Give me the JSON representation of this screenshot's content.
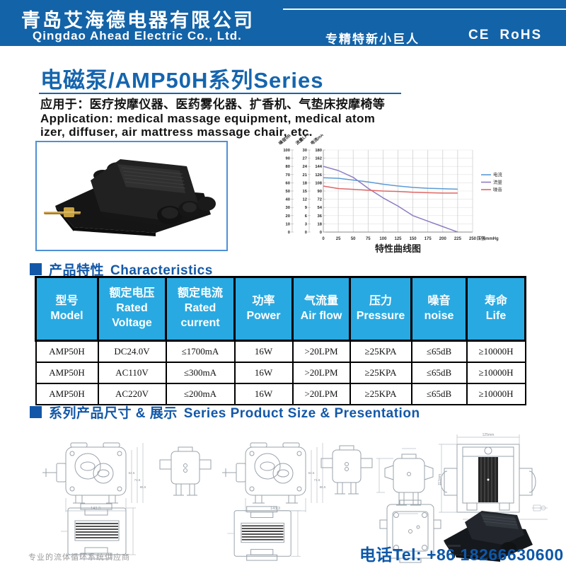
{
  "header": {
    "company_cn": "青岛艾海德电器有限公司",
    "company_en": "Qingdao Ahead Electric Co., Ltd.",
    "slogan": "专精特新小巨人",
    "cert_ce": "CE",
    "cert_rohs": "RoHS"
  },
  "title": {
    "main": "电磁泵/AMP50H系列Series",
    "application_cn": "应用于：医疗按摩仪器、医药雾化器、扩香机、气垫床按摩椅等",
    "application_en1": "Application: medical massage equipment, medical atom",
    "application_en2": "izer, diffuser, air mattress massage chair, etc."
  },
  "chart_data": {
    "type": "line",
    "title": "特性曲线图",
    "xlabel": "压强mmHg",
    "x_ticks": [
      0,
      25,
      50,
      75,
      100,
      125,
      150,
      175,
      200,
      225,
      250
    ],
    "x": [
      0,
      25,
      50,
      75,
      100,
      125,
      150,
      175,
      200,
      225
    ],
    "axes": [
      {
        "label": "噪音dB",
        "max": 100,
        "step": 10
      },
      {
        "label": "流量LPM",
        "max": 30,
        "step": 3
      },
      {
        "label": "电流mA",
        "max": 180,
        "step": 18
      }
    ],
    "series": [
      {
        "name": "电流",
        "axis": "电流mA",
        "color": "#5b9bd5",
        "values": [
          119,
          118,
          114,
          110,
          105,
          101,
          98,
          96,
          95,
          94
        ]
      },
      {
        "name": "流量",
        "axis": "流量LPM",
        "color": "#8e7cc3",
        "values": [
          24,
          22.5,
          20,
          16,
          12.5,
          9.5,
          6,
          4,
          2,
          0
        ]
      },
      {
        "name": "噪音",
        "axis": "噪音dB",
        "color": "#e06666",
        "values": [
          56,
          53,
          52,
          51,
          50,
          49.5,
          48.5,
          48,
          47.5,
          47.5
        ]
      }
    ],
    "legend_position": "right",
    "grid": true
  },
  "characteristics": {
    "heading_cn": "产品特性",
    "heading_en": "Characteristics",
    "columns": [
      {
        "cn": "型号",
        "en": "Model"
      },
      {
        "cn": "额定电压",
        "en": "Rated Voltage"
      },
      {
        "cn": "额定电流",
        "en": "Rated current"
      },
      {
        "cn": "功率",
        "en": "Power"
      },
      {
        "cn": "气流量",
        "en": "Air flow"
      },
      {
        "cn": "压力",
        "en": "Pressure"
      },
      {
        "cn": "噪音",
        "en": "noise"
      },
      {
        "cn": "寿命",
        "en": "Life"
      }
    ],
    "rows": [
      [
        "AMP50H",
        "DC24.0V",
        "≤1700mA",
        "16W",
        ">20LPM",
        "≥25KPA",
        "≤65dB",
        "≥10000H"
      ],
      [
        "AMP50H",
        "AC110V",
        "≤300mA",
        "16W",
        ">20LPM",
        "≥25KPA",
        "≤65dB",
        "≥10000H"
      ],
      [
        "AMP50H",
        "AC220V",
        "≤200mA",
        "16W",
        ">20LPM",
        "≥25KPA",
        "≤65dB",
        "≥10000H"
      ]
    ]
  },
  "size_section": {
    "heading_cn": "系列产品尺寸 & 展示",
    "heading_en": "Series Product Size & Presentation"
  },
  "drawings": {
    "top_view_dims": {
      "length": "143.3",
      "h1": "64.5",
      "h2": "71.5",
      "h3": "86.5"
    },
    "coil_view_dims": {
      "width": "125mm",
      "height": "117mm",
      "base": "45.7mm"
    }
  },
  "footer": {
    "tagline": "专业的流体循环系统供应商",
    "phone": "电话Tel: +86 18266630600"
  },
  "colors": {
    "header_blue": "#1363a8",
    "title_blue": "#1565ae",
    "table_header_cyan": "#29a9e1",
    "line_current": "#5b9bd5",
    "line_flow": "#8e7cc3",
    "line_noise": "#e06666"
  }
}
